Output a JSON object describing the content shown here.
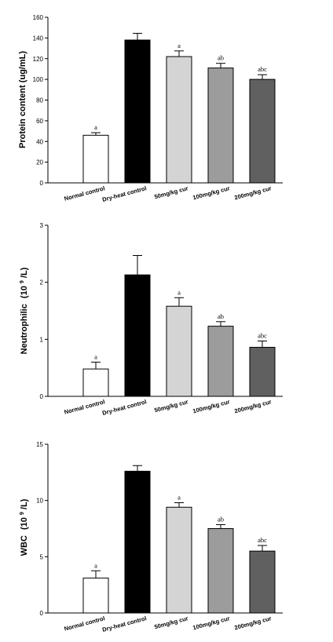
{
  "chart_data": [
    {
      "type": "bar",
      "ylabel": "Protein content (ug/mL)",
      "ylim": [
        0,
        160
      ],
      "yticks": [
        0,
        20,
        40,
        60,
        80,
        100,
        120,
        140,
        160
      ],
      "categories": [
        "Normal control",
        "Dry-heat control",
        "50mg/kg cur",
        "100mg/kg cur",
        "200mg/kg cur"
      ],
      "values": [
        46,
        138,
        122,
        111,
        100
      ],
      "errors": [
        2.5,
        6.5,
        5.5,
        4.5,
        4.5
      ],
      "bar_colors": [
        "#ffffff",
        "#000000",
        "#d4d4d4",
        "#9c9c9c",
        "#606060"
      ],
      "annotations": [
        "a",
        "",
        "a",
        "ab",
        "abc"
      ],
      "grid": false
    },
    {
      "type": "bar",
      "ylabel_main": "Neutrophilic",
      "ylabel_unit": "(10",
      "ylabel_sup": "9",
      "ylabel_tail": "/L)",
      "ylim": [
        0,
        3
      ],
      "yticks": [
        0,
        1,
        2,
        3
      ],
      "categories": [
        "Normal control",
        "Dry-heat control",
        "50mg/kg cur",
        "100mg/kg cur",
        "200mg/kg cur"
      ],
      "values": [
        0.48,
        2.13,
        1.58,
        1.23,
        0.86
      ],
      "errors": [
        0.12,
        0.34,
        0.15,
        0.08,
        0.11
      ],
      "bar_colors": [
        "#ffffff",
        "#000000",
        "#d4d4d4",
        "#9c9c9c",
        "#606060"
      ],
      "annotations": [
        "a",
        "",
        "a",
        "ab",
        "abc"
      ],
      "grid": false
    },
    {
      "type": "bar",
      "ylabel_main": "WBC",
      "ylabel_unit": "(10",
      "ylabel_sup": "9",
      "ylabel_tail": "/L)",
      "ylim": [
        0,
        15
      ],
      "yticks": [
        0,
        5,
        10,
        15
      ],
      "categories": [
        "Normal control",
        "Dry-heat control",
        "50mg/kg cur",
        "100mg/kg cur",
        "200mg/kg cur"
      ],
      "values": [
        3.1,
        12.6,
        9.4,
        7.5,
        5.5
      ],
      "errors": [
        0.65,
        0.5,
        0.4,
        0.35,
        0.5
      ],
      "bar_colors": [
        "#ffffff",
        "#000000",
        "#d4d4d4",
        "#9c9c9c",
        "#606060"
      ],
      "annotations": [
        "a",
        "",
        "a",
        "ab",
        "abc"
      ],
      "grid": false
    }
  ]
}
